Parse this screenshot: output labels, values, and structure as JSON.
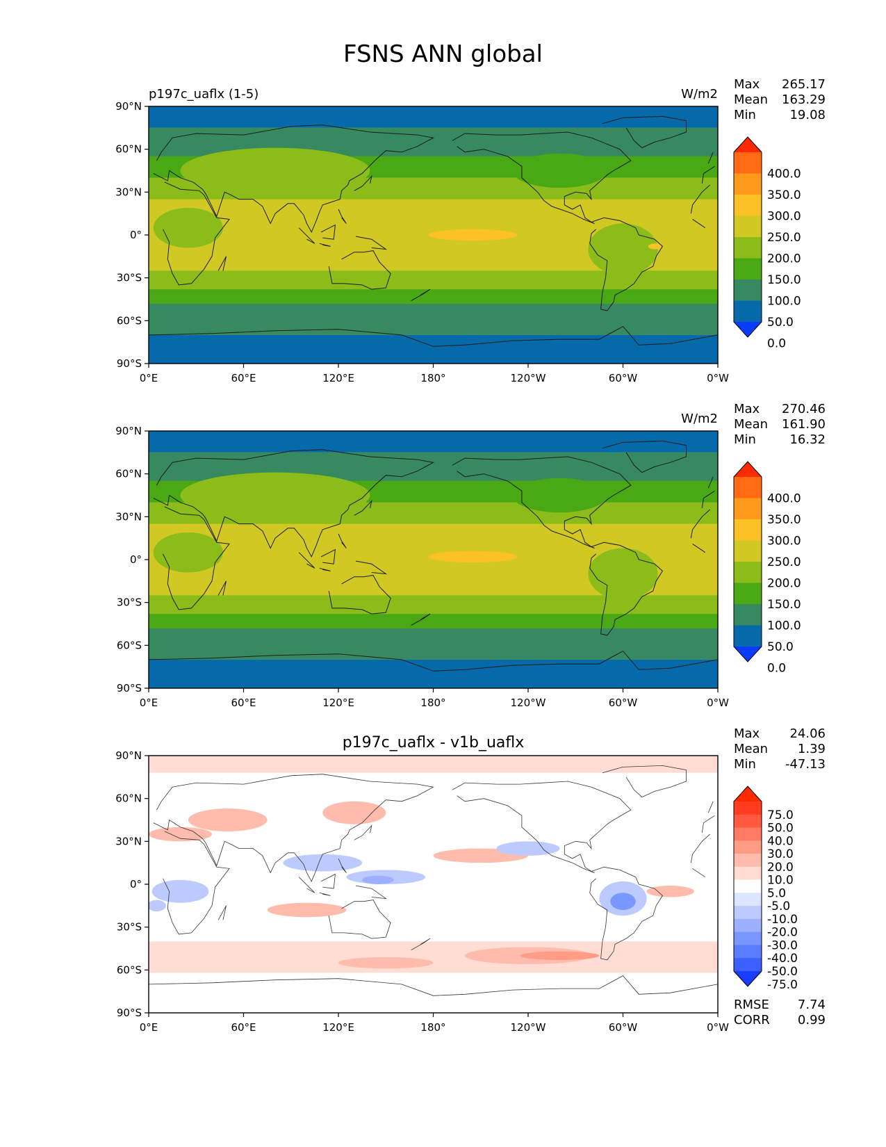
{
  "title": "FSNS ANN global",
  "x_ticks": [
    "0°E",
    "60°E",
    "120°E",
    "180°",
    "120°W",
    "60°W",
    "0°W"
  ],
  "y_ticks": [
    "90°N",
    "60°N",
    "30°N",
    "0°",
    "30°S",
    "60°S",
    "90°S"
  ],
  "panels": [
    {
      "left_title": "p197c_uaflx (1-5)",
      "center_title": "",
      "units": "W/m2",
      "stats": [
        {
          "name": "Max",
          "value": "265.17"
        },
        {
          "name": "Mean",
          "value": "163.29"
        },
        {
          "name": "Min",
          "value": "19.08"
        }
      ],
      "colorbar": {
        "labels": [
          "400.0",
          "350.0",
          "300.0",
          "250.0",
          "200.0",
          "150.0",
          "100.0",
          "50.0",
          "0.0"
        ],
        "colors": [
          "#ff2a00",
          "#ff6a12",
          "#ff9a1a",
          "#fcc124",
          "#d2c824",
          "#8cbc1a",
          "#4aa814",
          "#378a60",
          "#066aaa",
          "#0a3cff"
        ]
      }
    },
    {
      "left_title": "",
      "center_title": "",
      "units": "W/m2",
      "stats": [
        {
          "name": "Max",
          "value": "270.46"
        },
        {
          "name": "Mean",
          "value": "161.90"
        },
        {
          "name": "Min",
          "value": "16.32"
        }
      ],
      "colorbar": {
        "labels": [
          "400.0",
          "350.0",
          "300.0",
          "250.0",
          "200.0",
          "150.0",
          "100.0",
          "50.0",
          "0.0"
        ],
        "colors": [
          "#ff2a00",
          "#ff6a12",
          "#ff9a1a",
          "#fcc124",
          "#d2c824",
          "#8cbc1a",
          "#4aa814",
          "#378a60",
          "#066aaa",
          "#0a3cff"
        ]
      }
    },
    {
      "left_title": "",
      "center_title": "p197c_uaflx - v1b_uaflx",
      "units": "",
      "stats": [
        {
          "name": "Max",
          "value": "24.06"
        },
        {
          "name": "Mean",
          "value": "1.39"
        },
        {
          "name": "Min",
          "value": "-47.13"
        }
      ],
      "extra_stats": [
        {
          "name": "RMSE",
          "value": "7.74"
        },
        {
          "name": "CORR",
          "value": "0.99"
        }
      ],
      "colorbar": {
        "labels": [
          "75.0",
          "50.0",
          "40.0",
          "30.0",
          "20.0",
          "10.0",
          "5.0",
          "-5.0",
          "-10.0",
          "-20.0",
          "-30.0",
          "-40.0",
          "-50.0",
          "-75.0"
        ],
        "colors": [
          "#ff2a00",
          "#ff3c20",
          "#ff5a40",
          "#ff7a62",
          "#ff9c86",
          "#ffbcac",
          "#ffddd4",
          "#ffffff",
          "#dde4ff",
          "#bccaff",
          "#9cb0ff",
          "#7a96ff",
          "#5a7cff",
          "#3c60ff",
          "#1a3cff"
        ]
      }
    }
  ]
}
